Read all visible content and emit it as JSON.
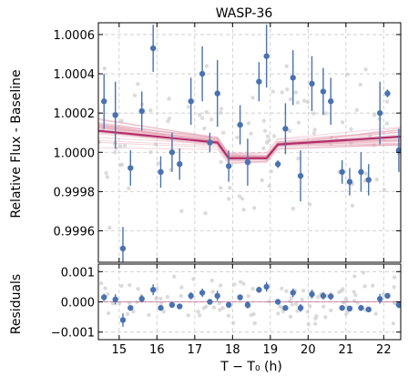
{
  "chart_data": [
    {
      "type": "scatter",
      "title": "WASP-36",
      "xlabel": "",
      "ylabel": "Relative Flux - Baseline",
      "xlim": [
        14.45,
        22.45
      ],
      "ylim": [
        0.99944,
        1.00066
      ],
      "yticks": [
        {
          "value": 0.9996,
          "label": "0.9996"
        },
        {
          "value": 0.9998,
          "label": "0.9998"
        },
        {
          "value": 1.0,
          "label": "1.0000"
        },
        {
          "value": 1.0002,
          "label": "1.0002"
        },
        {
          "value": 1.0004,
          "label": "1.0004"
        },
        {
          "value": 1.0006,
          "label": "1.0006"
        }
      ],
      "grid": true,
      "colors": {
        "binned": "#4a72b0",
        "model": "#b0306a",
        "samples": "#e4a3b3",
        "raw": "#c4c4c4"
      },
      "binned": {
        "x": [
          14.6,
          14.9,
          15.1,
          15.3,
          15.6,
          15.9,
          16.1,
          16.4,
          16.6,
          16.9,
          17.2,
          17.4,
          17.6,
          17.9,
          18.2,
          18.4,
          18.7,
          18.9,
          19.2,
          19.4,
          19.6,
          19.8,
          20.1,
          20.4,
          20.6,
          20.9,
          21.1,
          21.4,
          21.6,
          21.9,
          22.1,
          22.4
        ],
        "y": [
          1.00026,
          1.00019,
          0.99951,
          0.99992,
          1.00021,
          1.00053,
          0.9999,
          1.0,
          0.99994,
          1.00026,
          1.0004,
          1.00005,
          1.0003,
          0.99993,
          1.00014,
          0.99995,
          1.00036,
          1.00049,
          0.99994,
          1.00012,
          1.00038,
          0.99988,
          1.00035,
          1.00031,
          1.00026,
          0.9999,
          0.99985,
          0.9999,
          0.99986,
          1.0002,
          1.0003,
          1.00001
        ],
        "yerr": [
          0.00014,
          0.00017,
          0.00011,
          9e-05,
          0.0001,
          0.00012,
          8e-05,
          0.0001,
          8e-05,
          0.00012,
          0.00014,
          5e-05,
          0.00017,
          8e-05,
          0.0001,
          0.00012,
          0.0001,
          0.00016,
          2e-05,
          0.00013,
          0.00014,
          0.00013,
          0.00014,
          0.00012,
          0.00012,
          6e-05,
          7e-05,
          0.0001,
          8e-05,
          0.00016,
          2e-05,
          0.00011
        ]
      },
      "model": {
        "x": [
          14.45,
          17.6,
          17.9,
          18.9,
          19.2,
          22.45
        ],
        "y": [
          1.00011,
          1.00005,
          0.99997,
          0.99997,
          1.00004,
          1.00008
        ]
      }
    },
    {
      "type": "scatter",
      "title": "",
      "xlabel": "T − T₀ (h)",
      "ylabel": "Residuals",
      "xlim": [
        14.45,
        22.45
      ],
      "ylim": [
        -0.00125,
        0.00125
      ],
      "xticks": [
        15,
        16,
        17,
        18,
        19,
        20,
        21,
        22
      ],
      "yticks": [
        {
          "value": -0.001,
          "label": "−0.001"
        },
        {
          "value": 0.0,
          "label": "0.000"
        },
        {
          "value": 0.001,
          "label": "0.001"
        }
      ],
      "grid": true,
      "binned": {
        "x": [
          14.6,
          14.9,
          15.1,
          15.3,
          15.6,
          15.9,
          16.1,
          16.4,
          16.6,
          16.9,
          17.2,
          17.4,
          17.6,
          17.9,
          18.2,
          18.4,
          18.7,
          18.9,
          19.2,
          19.4,
          19.6,
          19.8,
          20.1,
          20.4,
          20.6,
          20.9,
          21.1,
          21.4,
          21.6,
          21.9,
          22.1,
          22.4
        ],
        "y": [
          0.00015,
          8e-05,
          -0.0006,
          -0.0002,
          0.0001,
          0.0004,
          -0.0002,
          -0.0001,
          -0.00015,
          0.0002,
          0.0003,
          0.0,
          0.0002,
          -0.0001,
          0.00015,
          -0.0001,
          0.0004,
          0.0005,
          0.0,
          -0.0002,
          0.0003,
          -0.0002,
          0.00025,
          0.0002,
          0.00018,
          -0.0002,
          -0.00022,
          -0.0002,
          -0.00025,
          0.0001,
          0.0002,
          -0.0001
        ],
        "yerr": [
          0.00012,
          0.00017,
          0.00022,
          8e-05,
          0.00012,
          0.00018,
          6e-05,
          0.0001,
          8e-05,
          0.00012,
          0.00014,
          6e-05,
          0.00017,
          8e-05,
          0.0001,
          0.00012,
          0.0001,
          0.00016,
          3e-05,
          6e-05,
          0.00014,
          0.00013,
          0.00014,
          0.00012,
          0.00012,
          6e-05,
          7e-05,
          0.0001,
          8e-05,
          0.00016,
          3e-05,
          0.00011
        ]
      },
      "reference_line": 0
    }
  ]
}
